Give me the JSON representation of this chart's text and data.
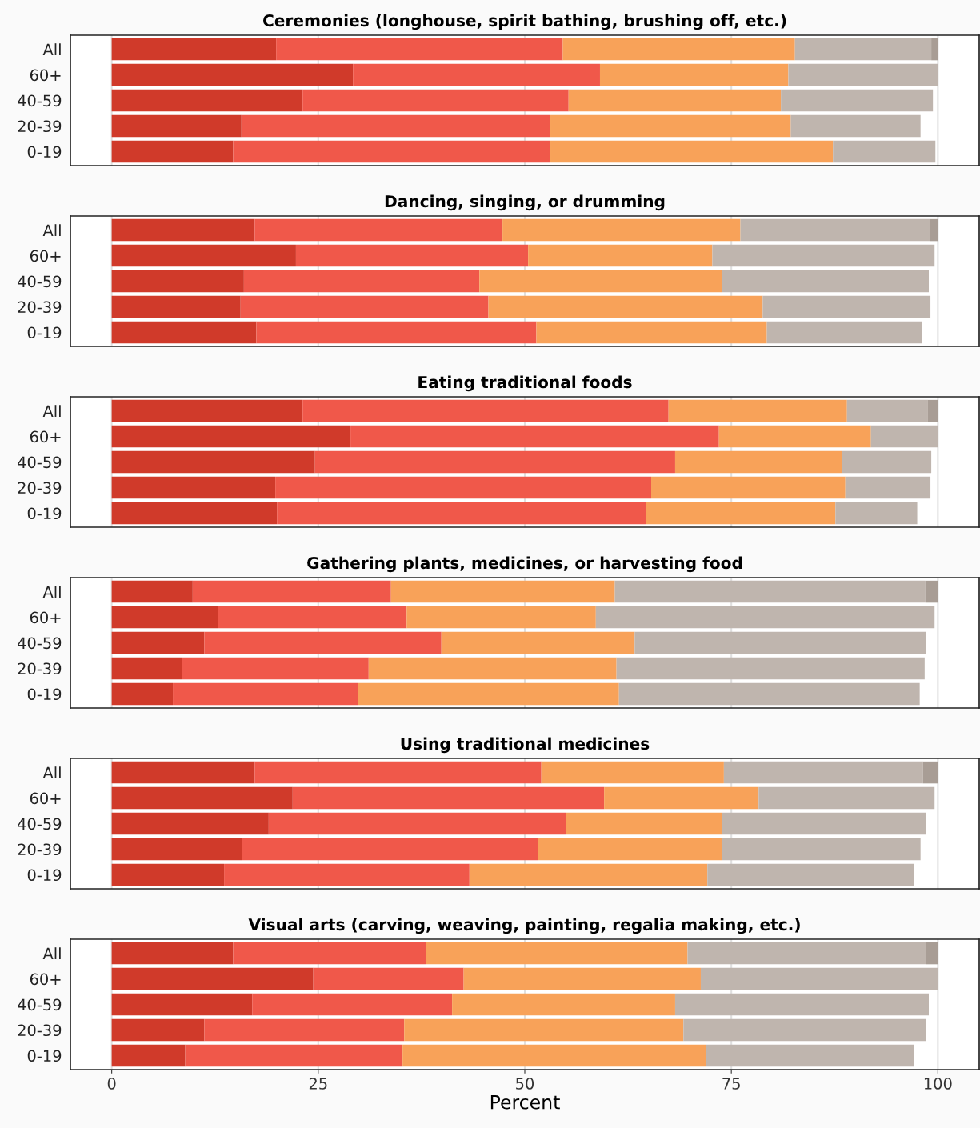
{
  "chart_data": [
    {
      "type": "bar",
      "orientation": "horizontal",
      "stacked": true,
      "title": "Ceremonies (longhouse, spirit bathing, brushing off, etc.)",
      "categories": [
        "All",
        "60+",
        "40-59",
        "20-39",
        "0-19"
      ],
      "xlim": [
        -5,
        105
      ],
      "xticks": [
        0,
        25,
        50,
        75,
        100
      ],
      "grid": "x",
      "tick_labels": "y",
      "series": [
        {
          "color": "#d03a2a",
          "values": [
            19.9,
            29.2,
            23.1,
            15.7,
            14.7
          ]
        },
        {
          "color": "#f0584a",
          "values": [
            34.7,
            29.9,
            32.2,
            37.4,
            38.4
          ]
        },
        {
          "color": "#f8a259",
          "values": [
            28.1,
            22.8,
            25.7,
            29.1,
            34.2
          ]
        },
        {
          "color": "#bfb5ae",
          "values": [
            16.5,
            18.1,
            18.4,
            15.7,
            12.4
          ]
        },
        {
          "color": "#a89d95",
          "values": [
            0.8,
            null,
            null,
            null,
            null
          ]
        }
      ]
    },
    {
      "type": "bar",
      "orientation": "horizontal",
      "stacked": true,
      "title": "Dancing, singing, or drumming",
      "categories": [
        "All",
        "60+",
        "40-59",
        "20-39",
        "0-19"
      ],
      "xlim": [
        -5,
        105
      ],
      "xticks": [
        0,
        25,
        50,
        75,
        100
      ],
      "grid": "x",
      "tick_labels": "y",
      "series": [
        {
          "color": "#d03a2a",
          "values": [
            17.3,
            22.3,
            16.0,
            15.6,
            17.5
          ]
        },
        {
          "color": "#f0584a",
          "values": [
            30.0,
            28.1,
            28.5,
            30.0,
            33.9
          ]
        },
        {
          "color": "#f8a259",
          "values": [
            28.8,
            22.3,
            29.4,
            33.2,
            27.9
          ]
        },
        {
          "color": "#bfb5ae",
          "values": [
            22.9,
            26.9,
            25.0,
            20.3,
            18.8
          ]
        },
        {
          "color": "#a89d95",
          "values": [
            1.0,
            null,
            null,
            null,
            null
          ]
        }
      ]
    },
    {
      "type": "bar",
      "orientation": "horizontal",
      "stacked": true,
      "title": "Eating traditional foods",
      "categories": [
        "All",
        "60+",
        "40-59",
        "20-39",
        "0-19"
      ],
      "xlim": [
        -5,
        105
      ],
      "xticks": [
        0,
        25,
        50,
        75,
        100
      ],
      "grid": "x",
      "tick_labels": "y",
      "series": [
        {
          "color": "#d03a2a",
          "values": [
            23.1,
            28.9,
            24.6,
            19.8,
            20.0
          ]
        },
        {
          "color": "#f0584a",
          "values": [
            44.3,
            44.6,
            43.6,
            45.5,
            44.7
          ]
        },
        {
          "color": "#f8a259",
          "values": [
            21.6,
            18.4,
            20.2,
            23.5,
            22.9
          ]
        },
        {
          "color": "#bfb5ae",
          "values": [
            9.8,
            8.1,
            10.8,
            10.3,
            9.9
          ]
        },
        {
          "color": "#a89d95",
          "values": [
            1.2,
            null,
            null,
            null,
            null
          ]
        }
      ]
    },
    {
      "type": "bar",
      "orientation": "horizontal",
      "stacked": true,
      "title": "Gathering plants, medicines, or harvesting food",
      "categories": [
        "All",
        "60+",
        "40-59",
        "20-39",
        "0-19"
      ],
      "xlim": [
        -5,
        105
      ],
      "xticks": [
        0,
        25,
        50,
        75,
        100
      ],
      "grid": "x",
      "tick_labels": "y",
      "series": [
        {
          "color": "#d03a2a",
          "values": [
            9.8,
            12.9,
            11.2,
            8.5,
            7.4
          ]
        },
        {
          "color": "#f0584a",
          "values": [
            24.0,
            22.8,
            28.7,
            22.6,
            22.4
          ]
        },
        {
          "color": "#f8a259",
          "values": [
            27.1,
            22.9,
            23.4,
            30.0,
            31.6
          ]
        },
        {
          "color": "#bfb5ae",
          "values": [
            37.6,
            41.0,
            35.3,
            37.3,
            36.4
          ]
        },
        {
          "color": "#a89d95",
          "values": [
            1.5,
            null,
            null,
            null,
            null
          ]
        }
      ]
    },
    {
      "type": "bar",
      "orientation": "horizontal",
      "stacked": true,
      "title": "Using traditional medicines",
      "categories": [
        "All",
        "60+",
        "40-59",
        "20-39",
        "0-19"
      ],
      "xlim": [
        -5,
        105
      ],
      "xticks": [
        0,
        25,
        50,
        75,
        100
      ],
      "grid": "x",
      "tick_labels": "y",
      "series": [
        {
          "color": "#d03a2a",
          "values": [
            17.3,
            21.9,
            19.0,
            15.8,
            13.6
          ]
        },
        {
          "color": "#f0584a",
          "values": [
            34.7,
            37.7,
            36.0,
            35.8,
            29.7
          ]
        },
        {
          "color": "#f8a259",
          "values": [
            22.1,
            18.7,
            18.9,
            22.3,
            28.8
          ]
        },
        {
          "color": "#bfb5ae",
          "values": [
            24.1,
            21.3,
            24.7,
            24.0,
            25.0
          ]
        },
        {
          "color": "#a89d95",
          "values": [
            1.8,
            null,
            null,
            null,
            null
          ]
        }
      ]
    },
    {
      "type": "bar",
      "orientation": "horizontal",
      "stacked": true,
      "title": "Visual arts (carving, weaving, painting, regalia making, etc.)",
      "xlabel": "Percent",
      "categories": [
        "All",
        "60+",
        "40-59",
        "20-39",
        "0-19"
      ],
      "xlim": [
        -5,
        105
      ],
      "xticks": [
        0,
        25,
        50,
        75,
        100
      ],
      "grid": "x",
      "series": [
        {
          "color": "#d03a2a",
          "values": [
            14.7,
            24.4,
            17.0,
            11.2,
            8.9
          ]
        },
        {
          "color": "#f0584a",
          "values": [
            23.3,
            18.2,
            24.2,
            24.2,
            26.3
          ]
        },
        {
          "color": "#f8a259",
          "values": [
            31.7,
            28.7,
            27.0,
            33.8,
            36.7
          ]
        },
        {
          "color": "#bfb5ae",
          "values": [
            28.9,
            28.7,
            30.7,
            29.4,
            25.2
          ]
        },
        {
          "color": "#a89d95",
          "values": [
            1.4,
            null,
            null,
            null,
            null
          ]
        }
      ]
    }
  ]
}
